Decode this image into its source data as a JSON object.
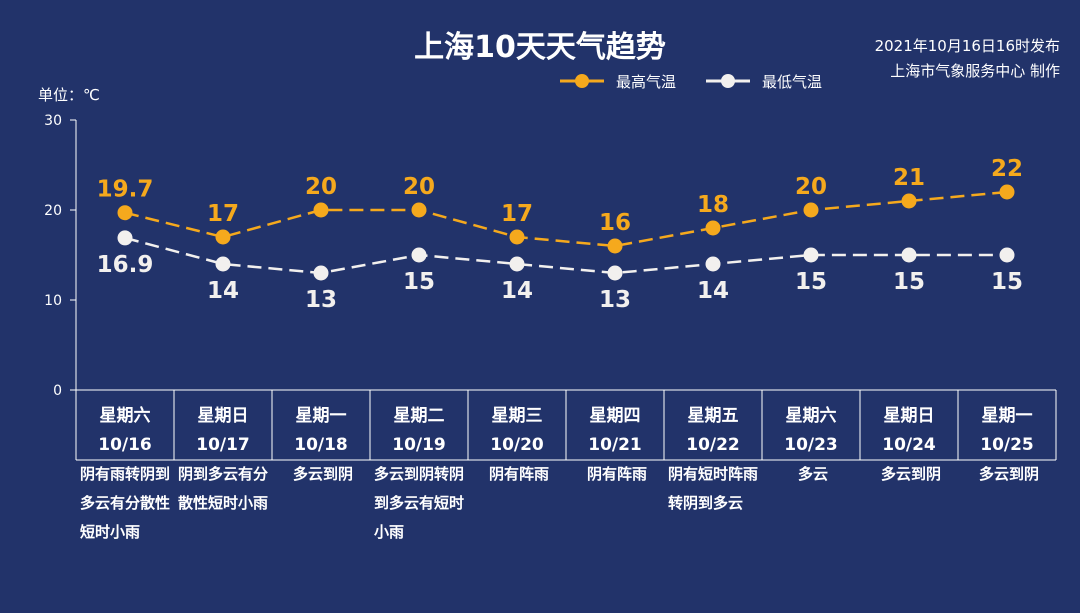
{
  "title": "上海10天天气趋势",
  "publish": {
    "time": "2021年10月16日16时发布",
    "org": "上海市气象服务中心 制作"
  },
  "unit_label": "单位：℃",
  "colors": {
    "high": "#f5a91d",
    "low": "#f2f0ee",
    "background": "#22336a"
  },
  "chart_data": {
    "type": "line",
    "ylim": [
      0,
      30
    ],
    "yticks": [
      "0",
      "10",
      "20",
      "30"
    ],
    "series": [
      {
        "name": "最高气温",
        "values": [
          19.7,
          17,
          20,
          20,
          17,
          16,
          18,
          20,
          21,
          22
        ],
        "labels": [
          "19.7",
          "17",
          "20",
          "20",
          "17",
          "16",
          "18",
          "20",
          "21",
          "22"
        ]
      },
      {
        "name": "最低气温",
        "values": [
          16.9,
          14,
          13,
          15,
          14,
          13,
          14,
          15,
          15,
          15
        ],
        "labels": [
          "16.9",
          "14",
          "13",
          "15",
          "14",
          "13",
          "14",
          "15",
          "15",
          "15"
        ]
      }
    ],
    "days": [
      {
        "week": "星期六",
        "date": "10/16",
        "desc": "阴有雨转阴到多云有分散性短时小雨"
      },
      {
        "week": "星期日",
        "date": "10/17",
        "desc": "阴到多云有分散性短时小雨"
      },
      {
        "week": "星期一",
        "date": "10/18",
        "desc": "多云到阴"
      },
      {
        "week": "星期二",
        "date": "10/19",
        "desc": "多云到阴转阴到多云有短时小雨"
      },
      {
        "week": "星期三",
        "date": "10/20",
        "desc": "阴有阵雨"
      },
      {
        "week": "星期四",
        "date": "10/21",
        "desc": "阴有阵雨"
      },
      {
        "week": "星期五",
        "date": "10/22",
        "desc": "阴有短时阵雨转阴到多云"
      },
      {
        "week": "星期六",
        "date": "10/23",
        "desc": "多云"
      },
      {
        "week": "星期日",
        "date": "10/24",
        "desc": "多云到阴"
      },
      {
        "week": "星期一",
        "date": "10/25",
        "desc": "多云到阴"
      }
    ]
  }
}
